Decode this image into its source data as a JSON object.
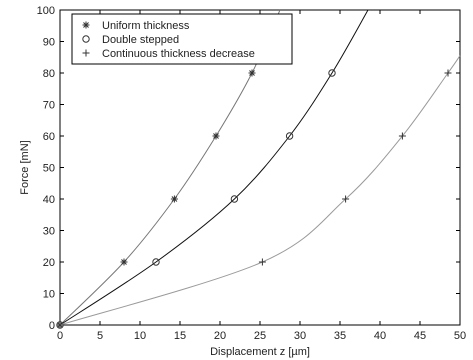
{
  "chart_data": {
    "type": "line",
    "title": "",
    "xlabel": "Displacement z [µm]",
    "ylabel": "Force [mN]",
    "xlim": [
      0,
      50
    ],
    "ylim": [
      0,
      100
    ],
    "xticks": [
      0,
      5,
      10,
      15,
      20,
      25,
      30,
      35,
      40,
      45,
      50
    ],
    "yticks": [
      0,
      10,
      20,
      30,
      40,
      50,
      60,
      70,
      80,
      90,
      100
    ],
    "grid": false,
    "legend_position": "top-left",
    "series": [
      {
        "name": "Uniform thickness",
        "marker": "asterisk",
        "color": "#777777",
        "curve": [
          [
            0,
            0
          ],
          [
            8,
            20
          ],
          [
            14.3,
            40
          ],
          [
            19.5,
            60
          ],
          [
            24,
            80
          ],
          [
            27.5,
            100
          ]
        ],
        "markers": [
          [
            0,
            0
          ],
          [
            8,
            20
          ],
          [
            14.3,
            40
          ],
          [
            19.5,
            60
          ],
          [
            24,
            80
          ]
        ]
      },
      {
        "name": "Double stepped",
        "marker": "circle",
        "color": "#111111",
        "curve": [
          [
            0,
            0
          ],
          [
            12,
            20
          ],
          [
            21.8,
            40
          ],
          [
            28.7,
            60
          ],
          [
            34,
            80
          ],
          [
            38.5,
            100
          ]
        ],
        "markers": [
          [
            0,
            0
          ],
          [
            12,
            20
          ],
          [
            21.8,
            40
          ],
          [
            28.7,
            60
          ],
          [
            34,
            80
          ]
        ]
      },
      {
        "name": "Continuous thickness decrease",
        "marker": "plus",
        "color": "#9a9a9a",
        "curve": [
          [
            0,
            0
          ],
          [
            25.3,
            20
          ],
          [
            35.7,
            40
          ],
          [
            42.8,
            60
          ],
          [
            48.5,
            80
          ],
          [
            50,
            85.5
          ]
        ],
        "markers": [
          [
            0,
            0
          ],
          [
            25.3,
            20
          ],
          [
            35.7,
            40
          ],
          [
            42.8,
            60
          ],
          [
            48.5,
            80
          ]
        ]
      }
    ]
  }
}
